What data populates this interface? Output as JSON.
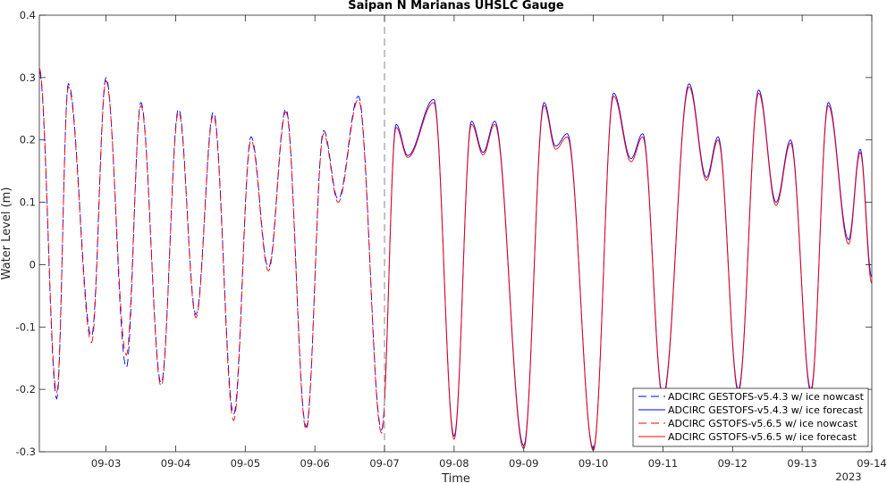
{
  "chart_data": {
    "type": "line",
    "title": "Saipan N Marianas UHSLC Gauge",
    "xlabel": "Time",
    "ylabel": "Water Level (m)",
    "year_label": "2023",
    "xlim": [
      "2023-09-02 01:00",
      "2023-09-14 00:00"
    ],
    "ylim": [
      -0.3,
      0.4
    ],
    "y_ticks": [
      -0.3,
      -0.2,
      -0.1,
      0,
      0.1,
      0.2,
      0.3,
      0.4
    ],
    "y_tick_labels": [
      "-0.3",
      "-0.2",
      "-0.1",
      "0",
      "0.1",
      "0.2",
      "0.3",
      "0.4"
    ],
    "x_ticks": [
      "2023-09-03",
      "2023-09-04",
      "2023-09-05",
      "2023-09-06",
      "2023-09-07",
      "2023-09-08",
      "2023-09-09",
      "2023-09-10",
      "2023-09-11",
      "2023-09-12",
      "2023-09-13",
      "2023-09-14"
    ],
    "x_tick_labels": [
      "09-03",
      "09-04",
      "09-05",
      "09-06",
      "09-07",
      "09-08",
      "09-09",
      "09-10",
      "09-11",
      "09-12",
      "09-13",
      "09-14"
    ],
    "nowcast_end": "2023-09-07 00:00",
    "grid": false,
    "legend_position": "lower-right",
    "extrema": {
      "gestofs_v543": [
        [
          "2023-09-02 01:00",
          0.31
        ],
        [
          "2023-09-02 07:00",
          -0.215
        ],
        [
          "2023-09-02 11:00",
          0.29
        ],
        [
          "2023-09-02 19:00",
          -0.115
        ],
        [
          "2023-09-03 00:00",
          0.3
        ],
        [
          "2023-09-03 07:00",
          -0.165
        ],
        [
          "2023-09-03 12:00",
          0.26
        ],
        [
          "2023-09-03 19:00",
          -0.19
        ],
        [
          "2023-09-04 01:00",
          0.25
        ],
        [
          "2023-09-04 07:00",
          -0.08
        ],
        [
          "2023-09-04 13:00",
          0.245
        ],
        [
          "2023-09-04 20:00",
          -0.24
        ],
        [
          "2023-09-05 02:00",
          0.205
        ],
        [
          "2023-09-05 08:00",
          -0.005
        ],
        [
          "2023-09-05 14:00",
          0.25
        ],
        [
          "2023-09-05 21:00",
          -0.26
        ],
        [
          "2023-09-06 03:00",
          0.215
        ],
        [
          "2023-09-06 08:00",
          0.105
        ],
        [
          "2023-09-06 15:00",
          0.27
        ],
        [
          "2023-09-06 23:00",
          -0.265
        ],
        [
          "2023-09-07 04:00",
          0.225
        ],
        [
          "2023-09-07 08:00",
          0.175
        ],
        [
          "2023-09-07 17:00",
          0.265
        ],
        [
          "2023-09-08 00:00",
          -0.275
        ],
        [
          "2023-09-08 06:00",
          0.23
        ],
        [
          "2023-09-08 10:00",
          0.18
        ],
        [
          "2023-09-08 14:00",
          0.23
        ],
        [
          "2023-09-09 00:00",
          -0.29
        ],
        [
          "2023-09-09 07:00",
          0.26
        ],
        [
          "2023-09-09 11:00",
          0.19
        ],
        [
          "2023-09-09 15:00",
          0.21
        ],
        [
          "2023-09-10 00:00",
          -0.295
        ],
        [
          "2023-09-10 07:00",
          0.275
        ],
        [
          "2023-09-10 13:00",
          0.17
        ],
        [
          "2023-09-10 17:00",
          0.21
        ],
        [
          "2023-09-11 00:00",
          -0.21
        ],
        [
          "2023-09-11 09:00",
          0.29
        ],
        [
          "2023-09-11 15:00",
          0.14
        ],
        [
          "2023-09-11 19:00",
          0.205
        ],
        [
          "2023-09-12 02:00",
          -0.2
        ],
        [
          "2023-09-12 09:00",
          0.28
        ],
        [
          "2023-09-12 15:00",
          0.1
        ],
        [
          "2023-09-12 20:00",
          0.2
        ],
        [
          "2023-09-13 03:00",
          -0.2
        ],
        [
          "2023-09-13 09:00",
          0.26
        ],
        [
          "2023-09-13 16:00",
          0.04
        ],
        [
          "2023-09-13 20:00",
          0.185
        ],
        [
          "2023-09-14 00:00",
          -0.02
        ]
      ],
      "gstofs_v565": [
        [
          "2023-09-02 01:00",
          0.315
        ],
        [
          "2023-09-02 07:00",
          -0.205
        ],
        [
          "2023-09-02 11:00",
          0.285
        ],
        [
          "2023-09-02 19:00",
          -0.125
        ],
        [
          "2023-09-03 00:00",
          0.295
        ],
        [
          "2023-09-03 07:00",
          -0.145
        ],
        [
          "2023-09-03 12:00",
          0.255
        ],
        [
          "2023-09-03 19:00",
          -0.195
        ],
        [
          "2023-09-04 01:00",
          0.245
        ],
        [
          "2023-09-04 07:00",
          -0.085
        ],
        [
          "2023-09-04 13:00",
          0.24
        ],
        [
          "2023-09-04 20:00",
          -0.25
        ],
        [
          "2023-09-05 02:00",
          0.2
        ],
        [
          "2023-09-05 08:00",
          -0.01
        ],
        [
          "2023-09-05 14:00",
          0.245
        ],
        [
          "2023-09-05 21:00",
          -0.265
        ],
        [
          "2023-09-06 03:00",
          0.21
        ],
        [
          "2023-09-06 08:00",
          0.1
        ],
        [
          "2023-09-06 15:00",
          0.265
        ],
        [
          "2023-09-06 23:00",
          -0.27
        ],
        [
          "2023-09-07 04:00",
          0.22
        ],
        [
          "2023-09-07 08:00",
          0.172
        ],
        [
          "2023-09-07 17:00",
          0.26
        ],
        [
          "2023-09-08 00:00",
          -0.28
        ],
        [
          "2023-09-08 06:00",
          0.225
        ],
        [
          "2023-09-08 10:00",
          0.176
        ],
        [
          "2023-09-08 14:00",
          0.225
        ],
        [
          "2023-09-09 00:00",
          -0.295
        ],
        [
          "2023-09-09 07:00",
          0.255
        ],
        [
          "2023-09-09 11:00",
          0.185
        ],
        [
          "2023-09-09 15:00",
          0.205
        ],
        [
          "2023-09-10 00:00",
          -0.298
        ],
        [
          "2023-09-10 07:00",
          0.27
        ],
        [
          "2023-09-10 13:00",
          0.165
        ],
        [
          "2023-09-10 17:00",
          0.205
        ],
        [
          "2023-09-11 00:00",
          -0.215
        ],
        [
          "2023-09-11 09:00",
          0.285
        ],
        [
          "2023-09-11 15:00",
          0.135
        ],
        [
          "2023-09-11 19:00",
          0.2
        ],
        [
          "2023-09-12 02:00",
          -0.205
        ],
        [
          "2023-09-12 09:00",
          0.275
        ],
        [
          "2023-09-12 15:00",
          0.095
        ],
        [
          "2023-09-12 20:00",
          0.195
        ],
        [
          "2023-09-13 03:00",
          -0.205
        ],
        [
          "2023-09-13 09:00",
          0.255
        ],
        [
          "2023-09-13 16:00",
          0.033
        ],
        [
          "2023-09-13 20:00",
          0.18
        ],
        [
          "2023-09-14 00:00",
          -0.03
        ]
      ]
    },
    "series": [
      {
        "name": "ADCIRC GESTOFS-v5.4.3 w/ ice nowcast",
        "color": "#0000ff",
        "style": "dashed",
        "model": "gestofs_v543",
        "segment": "nowcast"
      },
      {
        "name": "ADCIRC GESTOFS-v5.4.3 w/ ice forecast",
        "color": "#0000ff",
        "style": "solid",
        "model": "gestofs_v543",
        "segment": "forecast"
      },
      {
        "name": "ADCIRC GSTOFS-v5.6.5 w/ ice nowcast",
        "color": "#ff0000",
        "style": "dashed",
        "model": "gstofs_v565",
        "segment": "nowcast"
      },
      {
        "name": "ADCIRC GSTOFS-v5.6.5 w/ ice forecast",
        "color": "#ff0000",
        "style": "solid",
        "model": "gstofs_v565",
        "segment": "forecast"
      }
    ]
  }
}
